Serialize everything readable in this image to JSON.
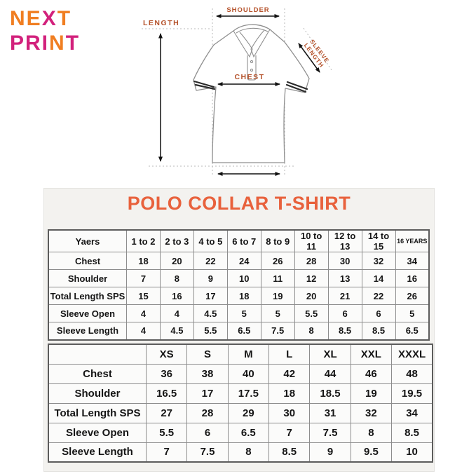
{
  "logo": {
    "line1": [
      {
        "text": "NE",
        "color": "#F07E21"
      },
      {
        "text": "X",
        "color": "#D2217C"
      },
      {
        "text": "T",
        "color": "#F07E21"
      }
    ],
    "line2": [
      {
        "text": "PRI",
        "color": "#D2217C"
      },
      {
        "text": "N",
        "color": "#F07E21"
      },
      {
        "text": "T",
        "color": "#D2217C"
      }
    ]
  },
  "diagram": {
    "labels": {
      "length": "LENGTH",
      "shoulder": "SHOULDER",
      "sleeve_line1": "SLEEVE",
      "sleeve_line2": "LENGTH",
      "chest": "CHEST"
    },
    "label_color": "#B5522B"
  },
  "title": {
    "text": "POLO COLLAR T-SHIRT",
    "color": "#E8613C"
  },
  "kids_table": {
    "headers": [
      "Yaers",
      "1 to 2",
      "2 to 3",
      "4 to 5",
      "6 to 7",
      "8 to 9",
      "10 to 11",
      "12 to 13",
      "14 to 15",
      "16 YEARS"
    ],
    "rows": [
      {
        "label": "Chest",
        "values": [
          "18",
          "20",
          "22",
          "24",
          "26",
          "28",
          "30",
          "32",
          "34"
        ]
      },
      {
        "label": "Shoulder",
        "values": [
          "7",
          "8",
          "9",
          "10",
          "11",
          "12",
          "13",
          "14",
          "16"
        ]
      },
      {
        "label": "Total Length SPS",
        "values": [
          "15",
          "16",
          "17",
          "18",
          "19",
          "20",
          "21",
          "22",
          "26"
        ]
      },
      {
        "label": "Sleeve Open",
        "values": [
          "4",
          "4",
          "4.5",
          "5",
          "5",
          "5.5",
          "6",
          "6",
          "5"
        ]
      },
      {
        "label": "Sleeve Length",
        "values": [
          "4",
          "4.5",
          "5.5",
          "6.5",
          "7.5",
          "8",
          "8.5",
          "8.5",
          "6.5"
        ]
      }
    ]
  },
  "adult_table": {
    "headers": [
      "",
      "XS",
      "S",
      "M",
      "L",
      "XL",
      "XXL",
      "XXXL"
    ],
    "rows": [
      {
        "label": "Chest",
        "values": [
          "36",
          "38",
          "40",
          "42",
          "44",
          "46",
          "48"
        ]
      },
      {
        "label": "Shoulder",
        "values": [
          "16.5",
          "17",
          "17.5",
          "18",
          "18.5",
          "19",
          "19.5"
        ]
      },
      {
        "label": "Total Length SPS",
        "values": [
          "27",
          "28",
          "29",
          "30",
          "31",
          "32",
          "34"
        ]
      },
      {
        "label": "Sleeve Open",
        "values": [
          "5.5",
          "6",
          "6.5",
          "7",
          "7.5",
          "8",
          "8.5"
        ]
      },
      {
        "label": "Sleeve Length",
        "values": [
          "7",
          "7.5",
          "8",
          "8.5",
          "9",
          "9.5",
          "10"
        ]
      }
    ]
  },
  "colors": {
    "panel_bg": "#F3F2EF",
    "table_border": "#8D8D8D",
    "measure_arrow": "#111111"
  }
}
